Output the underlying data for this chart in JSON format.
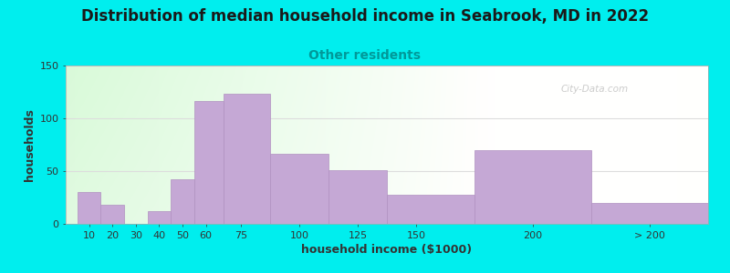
{
  "title": "Distribution of median household income in Seabrook, MD in 2022",
  "subtitle": "Other residents",
  "xlabel": "household income ($1000)",
  "ylabel": "households",
  "background_outer": "#00EEEE",
  "bar_color": "#C5A8D5",
  "bar_edge_color": "#B090C0",
  "categories": [
    "10",
    "20",
    "30",
    "40",
    "50",
    "60",
    "75",
    "100",
    "125",
    "150",
    "200",
    "> 200"
  ],
  "values": [
    30,
    18,
    0,
    12,
    42,
    116,
    123,
    66,
    51,
    28,
    70,
    20
  ],
  "ylim": [
    0,
    150
  ],
  "yticks": [
    0,
    50,
    100,
    150
  ],
  "title_fontsize": 12,
  "subtitle_fontsize": 10,
  "label_fontsize": 9,
  "tick_fontsize": 8,
  "watermark": "City-Data.com"
}
